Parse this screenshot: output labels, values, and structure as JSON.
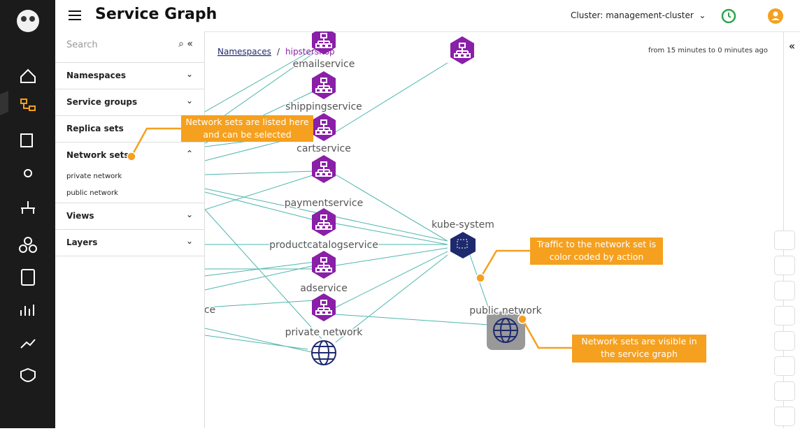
{
  "header": {
    "title": "Service Graph",
    "cluster": "Cluster: management-cluster"
  },
  "sidebar": {
    "search": "Search",
    "sections": [
      {
        "label": "Namespaces"
      },
      {
        "label": "Service groups"
      },
      {
        "label": "Replica sets"
      },
      {
        "label": "Network sets",
        "items": [
          "private network",
          "public network"
        ]
      },
      {
        "label": "Views"
      },
      {
        "label": "Layers"
      }
    ]
  },
  "breadcrumb": {
    "root": "Namespaces",
    "separator": "/",
    "current": "hipstershop"
  },
  "time_range": "from 15 minutes to 0 minutes ago",
  "graph": {
    "nodes": [
      {
        "label": "emailservice"
      },
      {
        "label": "shippingservice"
      },
      {
        "label": "cartservice"
      },
      {
        "label": "paymentservice"
      },
      {
        "label": "productcatalogservice"
      },
      {
        "label": "adservice"
      },
      {
        "label": "private network"
      },
      {
        "label": "kube-system"
      },
      {
        "label": "public network"
      },
      {
        "label": "ce"
      }
    ]
  },
  "callouts": [
    {
      "text": "Network sets are listed here and can be selected"
    },
    {
      "text": "Traffic to the network set is color coded by action"
    },
    {
      "text": "Network sets are visible in the service graph"
    }
  ]
}
